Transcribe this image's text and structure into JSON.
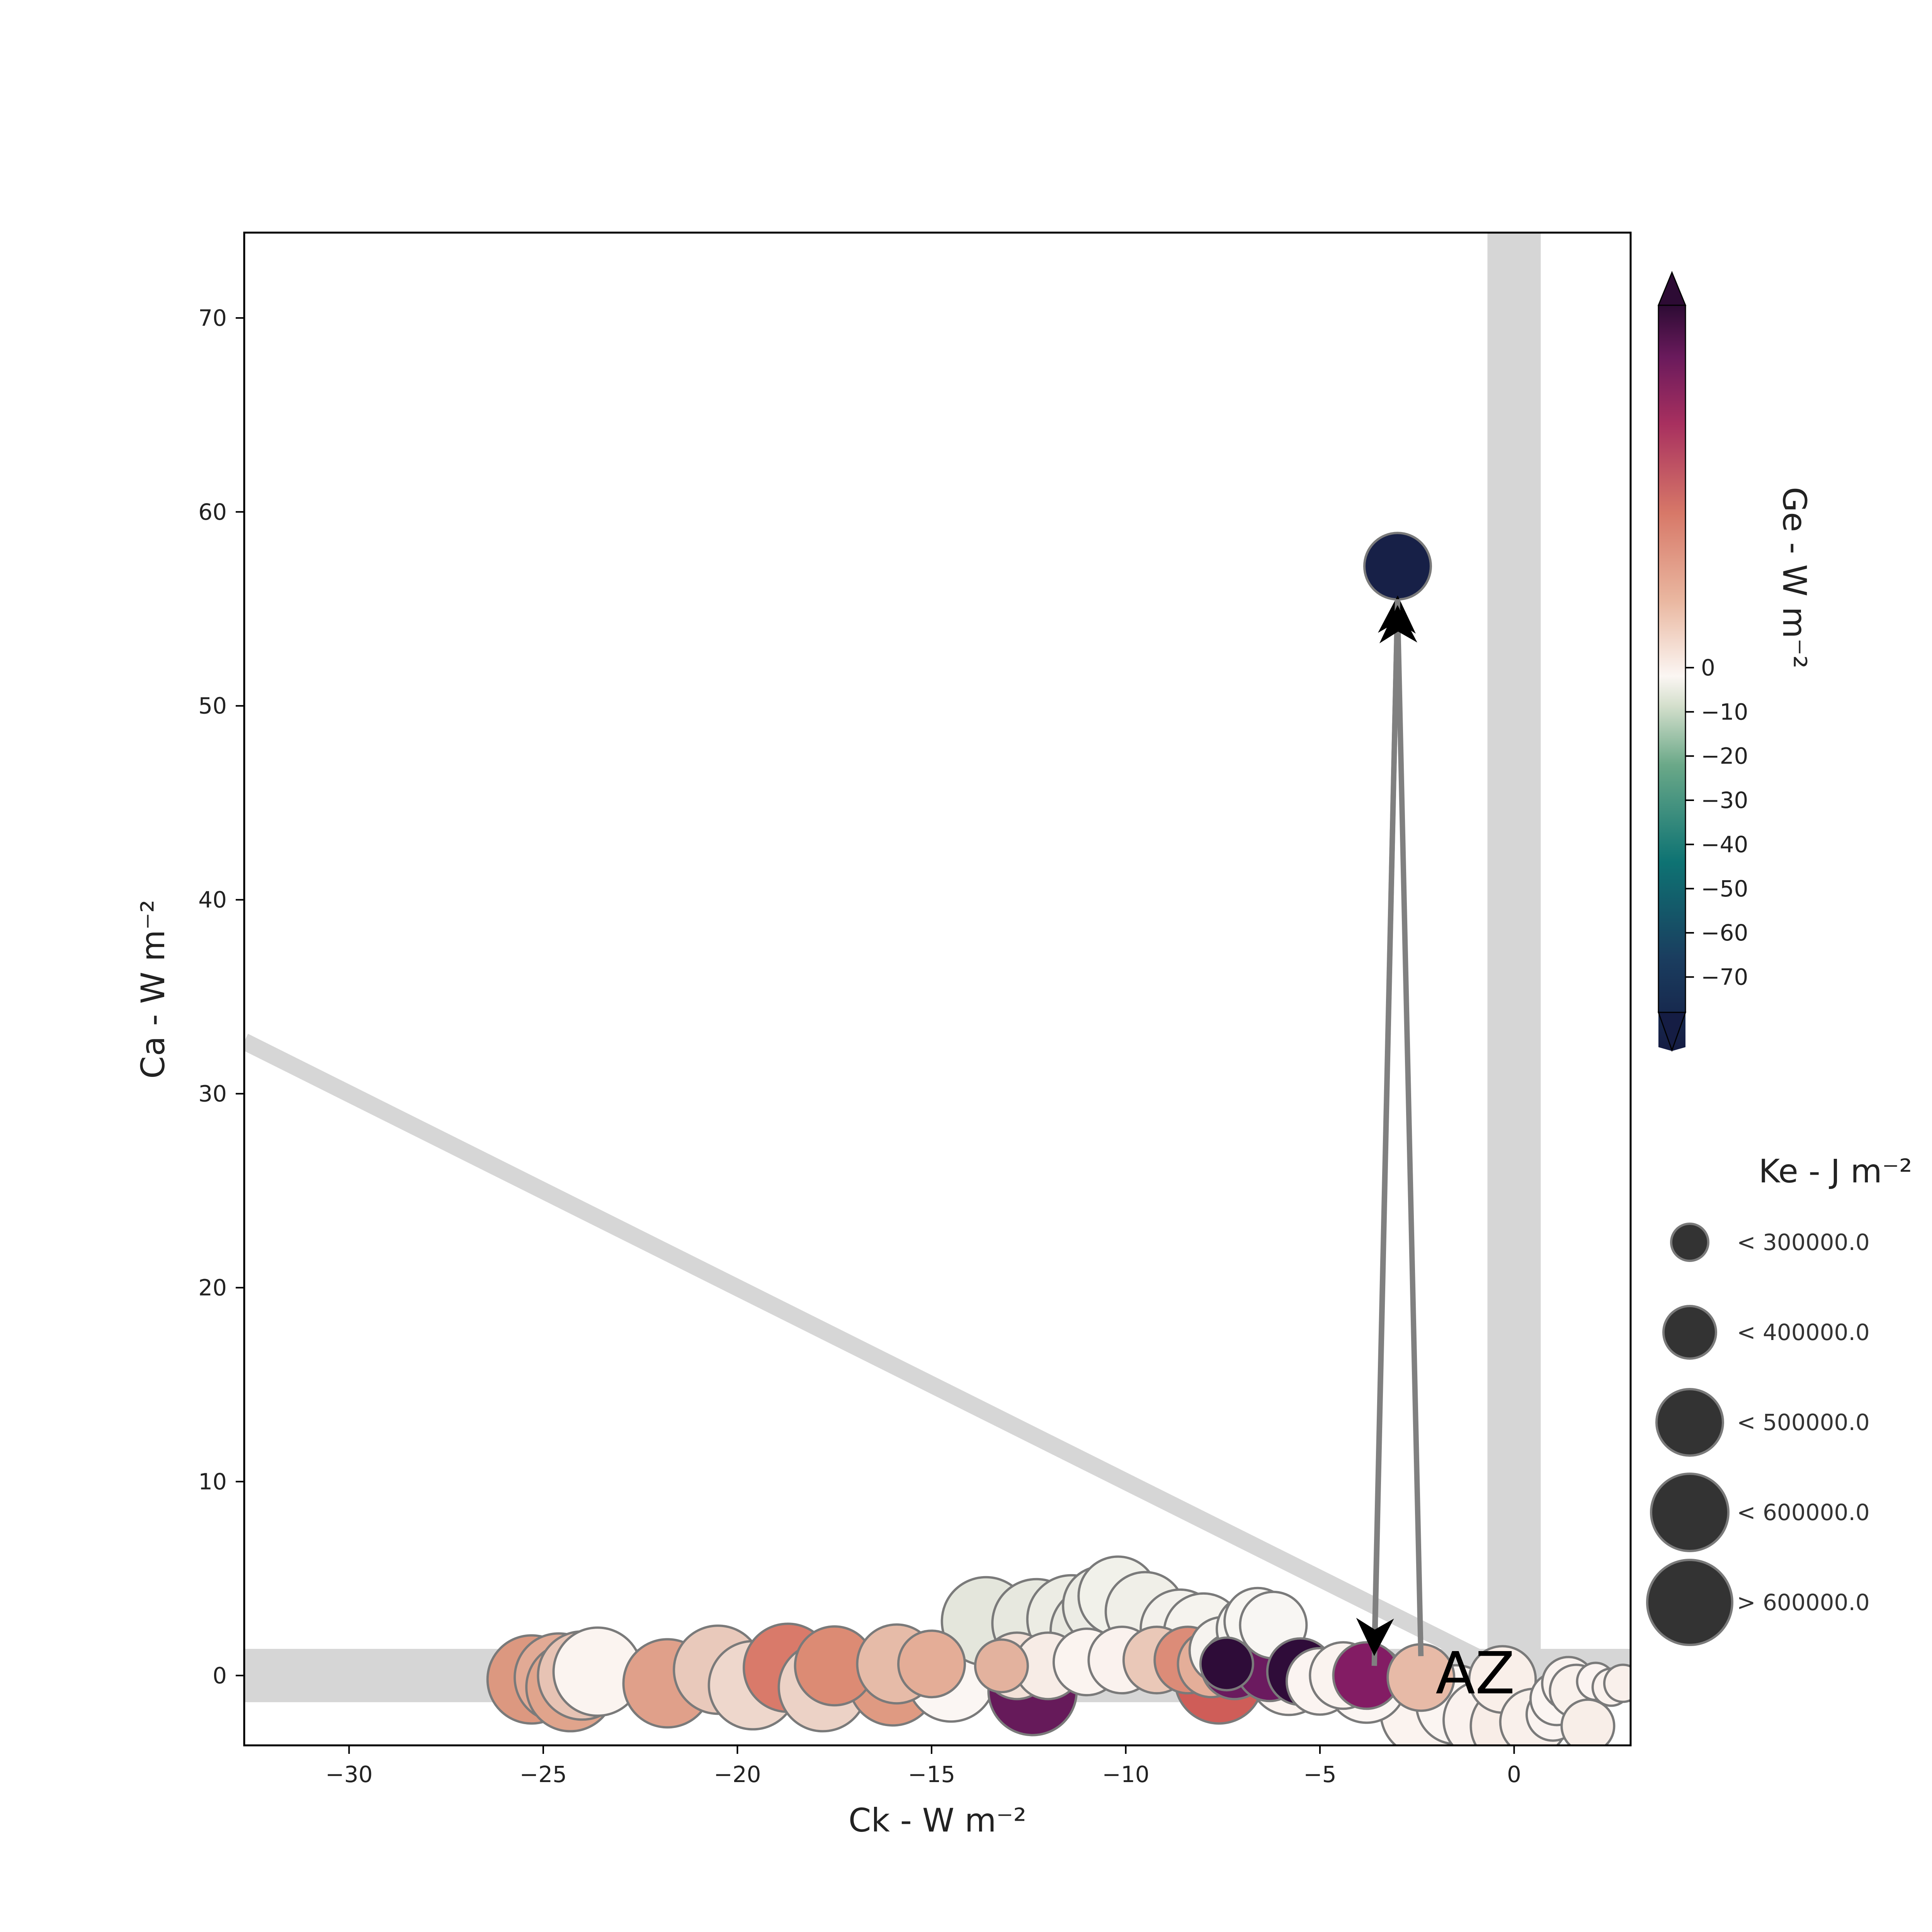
{
  "chart_data": {
    "type": "scatter",
    "xlabel": "Ck -  W m⁻²",
    "ylabel": "Ca -  W m⁻²",
    "xlim": [
      -32.7,
      3.0
    ],
    "ylim": [
      -3.6,
      74.4
    ],
    "xticks": [
      -30,
      -25,
      -20,
      -15,
      -10,
      -5,
      0
    ],
    "xtick_labels": [
      "−30",
      "−25",
      "−20",
      "−15",
      "−10",
      "−5",
      "0"
    ],
    "yticks": [
      0,
      10,
      20,
      30,
      40,
      50,
      60,
      70
    ],
    "ytick_labels": [
      "0",
      "10",
      "20",
      "30",
      "40",
      "50",
      "60",
      "70"
    ],
    "colorbar": {
      "label": "Ge -  W m⁻²",
      "range": [
        -78,
        82
      ],
      "ticks": [
        0,
        -10,
        -20,
        -30,
        -40,
        -50,
        -60,
        -70
      ],
      "tick_labels": [
        "0",
        "−10",
        "−20",
        "−30",
        "−40",
        "−50",
        "−60",
        "−70"
      ],
      "colormap": "curl-like diverging (dark navy → teal → pale → salmon → dark purple)",
      "extend": "both"
    },
    "size_legend": {
      "title": "Ke -  J m⁻²",
      "entries": [
        {
          "label": "< 300000.0",
          "level": 1
        },
        {
          "label": "< 400000.0",
          "level": 2
        },
        {
          "label": "< 500000.0",
          "level": 3
        },
        {
          "label": "< 600000.0",
          "level": 4
        },
        {
          "label": "> 600000.0",
          "level": 5
        }
      ]
    },
    "reference_bands": [
      {
        "kind": "horizontal",
        "y": 0
      },
      {
        "kind": "vertical",
        "x": 0
      },
      {
        "kind": "line",
        "from": [
          -32.7,
          32.7
        ],
        "to": [
          0,
          0
        ]
      }
    ],
    "arrows": [
      {
        "from": [
          -3.6,
          0.5
        ],
        "to": [
          -3.0,
          55.5
        ]
      },
      {
        "from": [
          -3.0,
          55.5
        ],
        "to": [
          -3.6,
          1.2
        ]
      },
      {
        "from": [
          -2.4,
          1.0
        ],
        "to": [
          -3.0,
          55.0
        ]
      }
    ],
    "annotation": {
      "text": "AZ",
      "x": -1.0,
      "y": -0.1
    },
    "series": [
      {
        "points": [
          {
            "x": -25.3,
            "y": -0.2,
            "size": 5,
            "color": "#dc9880"
          },
          {
            "x": -24.6,
            "y": -0.1,
            "size": 5,
            "color": "#e2aa95"
          },
          {
            "x": -24.3,
            "y": -0.6,
            "size": 5,
            "color": "#e0a48c"
          },
          {
            "x": -24.0,
            "y": 0.0,
            "size": 5,
            "color": "#e7c3b4"
          },
          {
            "x": -23.6,
            "y": 0.2,
            "size": 5,
            "color": "#fbf4f0"
          },
          {
            "x": -21.8,
            "y": -0.4,
            "size": 5,
            "color": "#e0a08a"
          },
          {
            "x": -20.5,
            "y": 0.3,
            "size": 5,
            "color": "#e9c9bb"
          },
          {
            "x": -19.6,
            "y": -0.5,
            "size": 5,
            "color": "#eed7cc"
          },
          {
            "x": -18.7,
            "y": 0.4,
            "size": 5,
            "color": "#d97a6a"
          },
          {
            "x": -17.8,
            "y": -0.6,
            "size": 5,
            "color": "#ecd2c6"
          },
          {
            "x": -17.5,
            "y": 0.5,
            "size": 4,
            "color": "#dc8b74"
          },
          {
            "x": -16.0,
            "y": -0.3,
            "size": 5,
            "color": "#df9a82"
          },
          {
            "x": -15.9,
            "y": 0.6,
            "size": 4,
            "color": "#e6bba8"
          },
          {
            "x": -15.0,
            "y": 0.6,
            "size": 3,
            "color": "#e4ad97"
          },
          {
            "x": -14.5,
            "y": -0.1,
            "size": 5,
            "color": "#fbf6f3"
          },
          {
            "x": -13.6,
            "y": 2.8,
            "size": 5,
            "color": "#e4e6dc"
          },
          {
            "x": -13.2,
            "y": 0.5,
            "size": 2,
            "color": "#e3b29e"
          },
          {
            "x": -12.8,
            "y": 0.5,
            "size": 3,
            "color": "#f3e1d8"
          },
          {
            "x": -12.4,
            "y": -0.8,
            "size": 5,
            "color": "#661a5a"
          },
          {
            "x": -12.3,
            "y": 2.7,
            "size": 5,
            "color": "#e7e8df"
          },
          {
            "x": -12.0,
            "y": 0.5,
            "size": 3,
            "color": "#f7ece6"
          },
          {
            "x": -11.4,
            "y": 2.9,
            "size": 5,
            "color": "#ecece4"
          },
          {
            "x": -11.0,
            "y": 0.7,
            "size": 3,
            "color": "#fbf4f0"
          },
          {
            "x": -10.8,
            "y": 2.3,
            "size": 5,
            "color": "#e9e9e1"
          },
          {
            "x": -10.6,
            "y": 3.6,
            "size": 4,
            "color": "#ecece5"
          },
          {
            "x": -10.2,
            "y": 4.1,
            "size": 4,
            "color": "#f1f1ea"
          },
          {
            "x": -10.1,
            "y": 0.8,
            "size": 3,
            "color": "#faf2ee"
          },
          {
            "x": -9.5,
            "y": 3.3,
            "size": 4,
            "color": "#f0efe8"
          },
          {
            "x": -9.2,
            "y": 1.8,
            "size": 5,
            "color": "#eeeee7"
          },
          {
            "x": -9.2,
            "y": 0.8,
            "size": 3,
            "color": "#eac8b8"
          },
          {
            "x": -8.6,
            "y": 2.4,
            "size": 4,
            "color": "#f3f1ec"
          },
          {
            "x": -8.4,
            "y": 0.8,
            "size": 3,
            "color": "#dc8c78"
          },
          {
            "x": -8.0,
            "y": 2.2,
            "size": 4,
            "color": "#f5f3ee"
          },
          {
            "x": -7.8,
            "y": 0.6,
            "size": 3,
            "color": "#e4ae99"
          },
          {
            "x": -7.6,
            "y": -0.2,
            "size": 5,
            "color": "#cf5d58"
          },
          {
            "x": -7.5,
            "y": 1.3,
            "size": 3,
            "color": "#f6f3ef"
          },
          {
            "x": -7.4,
            "y": 0.6,
            "size": 2,
            "color": "#2e0c38"
          },
          {
            "x": -7.2,
            "y": 0.5,
            "size": 3,
            "color": "#6a1a5e"
          },
          {
            "x": -6.8,
            "y": 2.4,
            "size": 3,
            "color": "#f6f4f0"
          },
          {
            "x": -6.6,
            "y": 2.8,
            "size": 3,
            "color": "#f8f6f2"
          },
          {
            "x": -6.3,
            "y": 0.4,
            "size": 3,
            "color": "#6b1a5f"
          },
          {
            "x": -6.2,
            "y": 2.6,
            "size": 3,
            "color": "#f8f6f3"
          },
          {
            "x": -5.8,
            "y": 0.0,
            "size": 4,
            "color": "#fbf3ef"
          },
          {
            "x": -5.5,
            "y": 0.2,
            "size": 3,
            "color": "#2f0c39"
          },
          {
            "x": -5.0,
            "y": -0.3,
            "size": 3,
            "color": "#fbf4f1"
          },
          {
            "x": -4.4,
            "y": 0.0,
            "size": 3,
            "color": "#faf3ef"
          },
          {
            "x": -3.8,
            "y": -0.4,
            "size": 4,
            "color": "#fbf5f2"
          },
          {
            "x": -3.8,
            "y": 0.0,
            "size": 3,
            "color": "#831c64"
          },
          {
            "x": -3.0,
            "y": 57.2,
            "size": 3,
            "color": "#172047"
          },
          {
            "x": -2.3,
            "y": -1.9,
            "size": 5,
            "color": "#fbf3ef"
          },
          {
            "x": -2.4,
            "y": -0.1,
            "size": 3,
            "color": "#e7baa7"
          },
          {
            "x": -1.5,
            "y": -1.5,
            "size": 4,
            "color": "#fbf5f2"
          },
          {
            "x": -0.8,
            "y": -2.3,
            "size": 4,
            "color": "#faf2ee"
          },
          {
            "x": -0.3,
            "y": -0.2,
            "size": 3,
            "color": "#f9efe9"
          },
          {
            "x": -0.1,
            "y": -2.6,
            "size": 4,
            "color": "#f8ede7"
          },
          {
            "x": 0.5,
            "y": -2.4,
            "size": 3,
            "color": "#f9f0eb"
          },
          {
            "x": 1.0,
            "y": -2.0,
            "size": 2,
            "color": "#faf3f0"
          },
          {
            "x": 1.1,
            "y": -1.2,
            "size": 2,
            "color": "#fbf5f2"
          },
          {
            "x": 1.4,
            "y": -0.4,
            "size": 2,
            "color": "#faf3ef"
          },
          {
            "x": 1.6,
            "y": -0.8,
            "size": 2,
            "color": "#f9f1ec"
          },
          {
            "x": 1.9,
            "y": -2.6,
            "size": 2,
            "color": "#f8eee8"
          },
          {
            "x": 2.1,
            "y": -0.3,
            "size": 1,
            "color": "#fbf4f1"
          },
          {
            "x": 2.5,
            "y": -0.6,
            "size": 1,
            "color": "#faf2ee"
          },
          {
            "x": 2.8,
            "y": -0.4,
            "size": 1,
            "color": "#f9f0eb"
          }
        ]
      }
    ]
  }
}
